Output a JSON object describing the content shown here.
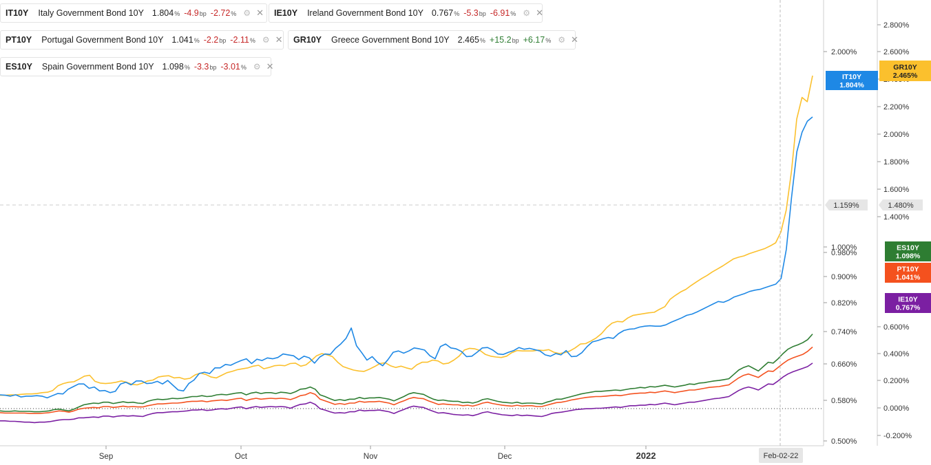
{
  "legend": [
    {
      "symbol": "IT10Y",
      "name": "Italy Government Bond 10Y",
      "value": "1.804",
      "unit": "%",
      "change": "-4.9",
      "change_unit": "bp",
      "pct": "-2.72",
      "pct_unit": "%",
      "color": "#1e88e5",
      "direction": "neg"
    },
    {
      "symbol": "IE10Y",
      "name": "Ireland Government Bond 10Y",
      "value": "0.767",
      "unit": "%",
      "change": "-5.3",
      "change_unit": "bp",
      "pct": "-6.91",
      "pct_unit": "%",
      "color": "#7b1fa2",
      "direction": "neg"
    },
    {
      "symbol": "PT10Y",
      "name": "Portugal Government Bond 10Y",
      "value": "1.041",
      "unit": "%",
      "change": "-2.2",
      "change_unit": "bp",
      "pct": "-2.11",
      "pct_unit": "%",
      "color": "#f4511e",
      "direction": "neg"
    },
    {
      "symbol": "GR10Y",
      "name": "Greece Government Bond 10Y",
      "value": "2.465",
      "unit": "%",
      "change": "+15.2",
      "change_unit": "bp",
      "pct": "+6.17",
      "pct_unit": "%",
      "color": "#fbc02d",
      "direction": "pos"
    },
    {
      "symbol": "ES10Y",
      "name": "Spain Government Bond 10Y",
      "value": "1.098",
      "unit": "%",
      "change": "-3.3",
      "change_unit": "bp",
      "pct": "-3.01",
      "pct_unit": "%",
      "color": "#2e7d32",
      "direction": "neg"
    }
  ],
  "chart_data": {
    "type": "line",
    "x_labels": [
      "Sep",
      "Oct",
      "Nov",
      "Dec",
      "2022"
    ],
    "crosshair_date": "Feb-02-22",
    "crosshair_left_value": "1.159%",
    "crosshair_right_value": "1.480%",
    "axis_left_ticks": [
      "2.000%",
      "1.000%",
      "0.980%",
      "0.900%",
      "0.820%",
      "0.740%",
      "0.660%",
      "0.580%",
      "0.500%"
    ],
    "axis_right_ticks": [
      "2.800%",
      "2.600%",
      "2.400%",
      "2.200%",
      "2.000%",
      "1.800%",
      "1.600%",
      "1.400%",
      "0.600%",
      "0.400%",
      "0.200%",
      "0.000%",
      "-0.200%"
    ],
    "series": [
      {
        "name": "GR10Y",
        "color": "#fbc02d",
        "label": "GR10Y",
        "value_label": "2.465%",
        "values": [
          0.54,
          0.54,
          0.55,
          0.55,
          0.56,
          0.57,
          0.57,
          0.58,
          0.6,
          0.61,
          0.65,
          0.76,
          0.81,
          0.84,
          0.85,
          0.91,
          0.98,
          1.0,
          0.86,
          0.82,
          0.81,
          0.82,
          0.84,
          0.87,
          0.84,
          0.79,
          0.78,
          0.82,
          0.87,
          0.89,
          0.96,
          0.98,
          0.99,
          0.94,
          0.95,
          0.91,
          0.93,
          1.01,
          1.05,
          1.02,
          0.96,
          0.94,
          1.0,
          1.06,
          1.09,
          1.13,
          1.15,
          1.17,
          1.21,
          1.23,
          1.15,
          1.18,
          1.22,
          1.23,
          1.22,
          1.27,
          1.28,
          1.21,
          1.24,
          1.34,
          1.45,
          1.5,
          1.47,
          1.43,
          1.3,
          1.2,
          1.16,
          1.12,
          1.1,
          1.09,
          1.14,
          1.2,
          1.27,
          1.29,
          1.22,
          1.18,
          1.21,
          1.17,
          1.14,
          1.24,
          1.3,
          1.3,
          1.35,
          1.33,
          1.26,
          1.28,
          1.35,
          1.44,
          1.58,
          1.62,
          1.61,
          1.57,
          1.48,
          1.44,
          1.42,
          1.41,
          1.44,
          1.52,
          1.57,
          1.56,
          1.56,
          1.56,
          1.58,
          1.57,
          1.59,
          1.53,
          1.5,
          1.52,
          1.56,
          1.63,
          1.72,
          1.73,
          1.79,
          1.86,
          1.96,
          2.1,
          2.2,
          2.24,
          2.23,
          2.32,
          2.38,
          2.4,
          2.42,
          2.44,
          2.45,
          2.52,
          2.58,
          2.75,
          2.84,
          2.92,
          2.98,
          3.07,
          3.15,
          3.23,
          3.3,
          3.38,
          3.45,
          3.52,
          3.6,
          3.68,
          3.72,
          3.75,
          3.8,
          3.84,
          3.88,
          3.92,
          3.98,
          4.05,
          4.3,
          4.8,
          5.7,
          6.9,
          7.4,
          7.3,
          7.9
        ]
      },
      {
        "name": "IT10Y",
        "color": "#1e88e5",
        "label": "IT10Y",
        "value_label": "1.804%",
        "values": [
          0.55,
          0.54,
          0.52,
          0.55,
          0.5,
          0.52,
          0.52,
          0.53,
          0.52,
          0.48,
          0.53,
          0.58,
          0.57,
          0.68,
          0.74,
          0.8,
          0.8,
          0.7,
          0.73,
          0.64,
          0.65,
          0.6,
          0.63,
          0.8,
          0.84,
          0.78,
          0.87,
          0.87,
          0.81,
          0.82,
          0.86,
          0.8,
          0.88,
          0.77,
          0.66,
          0.64,
          0.81,
          0.89,
          1.04,
          1.07,
          1.04,
          1.17,
          1.17,
          1.25,
          1.23,
          1.29,
          1.34,
          1.38,
          1.27,
          1.37,
          1.34,
          1.4,
          1.38,
          1.41,
          1.49,
          1.47,
          1.45,
          1.36,
          1.44,
          1.4,
          1.28,
          1.42,
          1.49,
          1.48,
          1.62,
          1.72,
          1.85,
          2.09,
          1.68,
          1.52,
          1.35,
          1.43,
          1.3,
          1.22,
          1.36,
          1.53,
          1.56,
          1.51,
          1.56,
          1.63,
          1.61,
          1.58,
          1.45,
          1.38,
          1.66,
          1.72,
          1.63,
          1.61,
          1.55,
          1.43,
          1.44,
          1.53,
          1.63,
          1.64,
          1.58,
          1.49,
          1.48,
          1.53,
          1.57,
          1.64,
          1.6,
          1.62,
          1.59,
          1.56,
          1.47,
          1.44,
          1.5,
          1.47,
          1.57,
          1.43,
          1.44,
          1.52,
          1.66,
          1.77,
          1.8,
          1.84,
          1.87,
          1.85,
          1.96,
          2.03,
          2.06,
          2.07,
          2.11,
          2.13,
          2.14,
          2.13,
          2.13,
          2.16,
          2.22,
          2.27,
          2.32,
          2.38,
          2.41,
          2.46,
          2.52,
          2.58,
          2.64,
          2.7,
          2.68,
          2.73,
          2.8,
          2.84,
          2.88,
          2.93,
          2.96,
          2.98,
          3.02,
          3.06,
          3.1,
          3.23,
          3.9,
          5.1,
          6.15,
          6.6,
          6.85,
          6.95
        ]
      },
      {
        "name": "ES10Y",
        "color": "#2e7d32",
        "label": "ES10Y",
        "value_label": "1.098%",
        "values": [
          0.18,
          0.17,
          0.17,
          0.18,
          0.17,
          0.17,
          0.17,
          0.16,
          0.16,
          0.17,
          0.18,
          0.21,
          0.22,
          0.2,
          0.18,
          0.22,
          0.27,
          0.32,
          0.34,
          0.36,
          0.35,
          0.38,
          0.38,
          0.35,
          0.37,
          0.39,
          0.37,
          0.38,
          0.36,
          0.35,
          0.4,
          0.43,
          0.45,
          0.44,
          0.45,
          0.47,
          0.46,
          0.47,
          0.49,
          0.51,
          0.51,
          0.53,
          0.51,
          0.52,
          0.55,
          0.56,
          0.55,
          0.57,
          0.59,
          0.6,
          0.55,
          0.59,
          0.61,
          0.58,
          0.6,
          0.6,
          0.58,
          0.61,
          0.6,
          0.58,
          0.62,
          0.68,
          0.69,
          0.73,
          0.68,
          0.55,
          0.51,
          0.46,
          0.42,
          0.44,
          0.42,
          0.45,
          0.45,
          0.49,
          0.46,
          0.48,
          0.48,
          0.49,
          0.47,
          0.45,
          0.41,
          0.46,
          0.51,
          0.57,
          0.6,
          0.58,
          0.56,
          0.5,
          0.45,
          0.42,
          0.43,
          0.41,
          0.4,
          0.4,
          0.37,
          0.38,
          0.36,
          0.39,
          0.44,
          0.46,
          0.43,
          0.4,
          0.38,
          0.37,
          0.36,
          0.38,
          0.35,
          0.36,
          0.36,
          0.35,
          0.34,
          0.38,
          0.41,
          0.45,
          0.45,
          0.48,
          0.51,
          0.54,
          0.57,
          0.59,
          0.61,
          0.63,
          0.63,
          0.64,
          0.65,
          0.66,
          0.65,
          0.67,
          0.69,
          0.7,
          0.72,
          0.71,
          0.74,
          0.73,
          0.75,
          0.77,
          0.75,
          0.73,
          0.75,
          0.77,
          0.8,
          0.79,
          0.82,
          0.83,
          0.85,
          0.87,
          0.88,
          0.9,
          0.92,
          1.02,
          1.12,
          1.18,
          1.22,
          1.16,
          1.1,
          1.2,
          1.3,
          1.28,
          1.38,
          1.5,
          1.6,
          1.66,
          1.7,
          1.75,
          1.82,
          1.95
        ]
      },
      {
        "name": "PT10Y",
        "color": "#f4511e",
        "label": "PT10Y",
        "value_label": "1.041%",
        "values": [
          0.14,
          0.13,
          0.13,
          0.13,
          0.13,
          0.13,
          0.12,
          0.12,
          0.12,
          0.13,
          0.14,
          0.16,
          0.18,
          0.17,
          0.15,
          0.18,
          0.22,
          0.24,
          0.25,
          0.26,
          0.25,
          0.28,
          0.28,
          0.26,
          0.27,
          0.29,
          0.27,
          0.28,
          0.27,
          0.27,
          0.3,
          0.32,
          0.34,
          0.34,
          0.35,
          0.36,
          0.36,
          0.37,
          0.39,
          0.4,
          0.4,
          0.41,
          0.39,
          0.41,
          0.42,
          0.43,
          0.42,
          0.44,
          0.46,
          0.47,
          0.42,
          0.45,
          0.47,
          0.45,
          0.46,
          0.47,
          0.46,
          0.47,
          0.46,
          0.44,
          0.48,
          0.53,
          0.55,
          0.6,
          0.56,
          0.45,
          0.41,
          0.37,
          0.33,
          0.35,
          0.33,
          0.36,
          0.36,
          0.4,
          0.38,
          0.39,
          0.39,
          0.4,
          0.38,
          0.36,
          0.32,
          0.37,
          0.41,
          0.46,
          0.49,
          0.47,
          0.46,
          0.41,
          0.37,
          0.33,
          0.34,
          0.33,
          0.32,
          0.32,
          0.3,
          0.31,
          0.29,
          0.32,
          0.36,
          0.38,
          0.35,
          0.33,
          0.31,
          0.3,
          0.29,
          0.31,
          0.29,
          0.3,
          0.3,
          0.28,
          0.28,
          0.31,
          0.34,
          0.37,
          0.38,
          0.4,
          0.43,
          0.45,
          0.47,
          0.49,
          0.5,
          0.51,
          0.51,
          0.52,
          0.53,
          0.54,
          0.53,
          0.55,
          0.57,
          0.58,
          0.59,
          0.59,
          0.61,
          0.6,
          0.62,
          0.64,
          0.62,
          0.6,
          0.62,
          0.64,
          0.66,
          0.66,
          0.68,
          0.7,
          0.72,
          0.73,
          0.74,
          0.76,
          0.78,
          0.86,
          0.94,
          1.0,
          1.03,
          0.99,
          0.95,
          1.03,
          1.1,
          1.09,
          1.18,
          1.27,
          1.35,
          1.4,
          1.44,
          1.48,
          1.55,
          1.65
        ]
      },
      {
        "name": "IE10Y",
        "color": "#7b1fa2",
        "label": "IE10Y",
        "value_label": "0.767%",
        "values": [
          -0.05,
          -0.05,
          -0.06,
          -0.06,
          -0.07,
          -0.08,
          -0.08,
          -0.09,
          -0.08,
          -0.08,
          -0.07,
          -0.05,
          -0.03,
          -0.02,
          -0.02,
          -0.01,
          0.02,
          0.02,
          0.03,
          0.04,
          0.03,
          0.06,
          0.06,
          0.04,
          0.06,
          0.07,
          0.06,
          0.07,
          0.06,
          0.05,
          0.09,
          0.12,
          0.14,
          0.14,
          0.15,
          0.16,
          0.16,
          0.17,
          0.18,
          0.2,
          0.2,
          0.21,
          0.19,
          0.2,
          0.22,
          0.23,
          0.22,
          0.24,
          0.26,
          0.27,
          0.23,
          0.26,
          0.28,
          0.26,
          0.27,
          0.28,
          0.27,
          0.28,
          0.27,
          0.24,
          0.29,
          0.33,
          0.34,
          0.38,
          0.33,
          0.23,
          0.2,
          0.16,
          0.13,
          0.14,
          0.13,
          0.16,
          0.16,
          0.2,
          0.18,
          0.19,
          0.19,
          0.2,
          0.18,
          0.16,
          0.12,
          0.17,
          0.21,
          0.26,
          0.29,
          0.27,
          0.26,
          0.21,
          0.17,
          0.13,
          0.14,
          0.12,
          0.1,
          0.09,
          0.08,
          0.09,
          0.07,
          0.1,
          0.14,
          0.16,
          0.13,
          0.11,
          0.09,
          0.08,
          0.07,
          0.09,
          0.07,
          0.08,
          0.07,
          0.06,
          0.05,
          0.08,
          0.12,
          0.14,
          0.15,
          0.17,
          0.19,
          0.21,
          0.22,
          0.23,
          0.23,
          0.24,
          0.24,
          0.25,
          0.26,
          0.27,
          0.26,
          0.28,
          0.3,
          0.3,
          0.31,
          0.31,
          0.33,
          0.32,
          0.34,
          0.36,
          0.34,
          0.32,
          0.34,
          0.36,
          0.38,
          0.38,
          0.4,
          0.42,
          0.44,
          0.46,
          0.47,
          0.49,
          0.51,
          0.58,
          0.65,
          0.7,
          0.73,
          0.7,
          0.66,
          0.73,
          0.8,
          0.79,
          0.87,
          0.96,
          1.03,
          1.08,
          1.12,
          1.16,
          1.2,
          1.28
        ]
      }
    ],
    "grid": false
  }
}
